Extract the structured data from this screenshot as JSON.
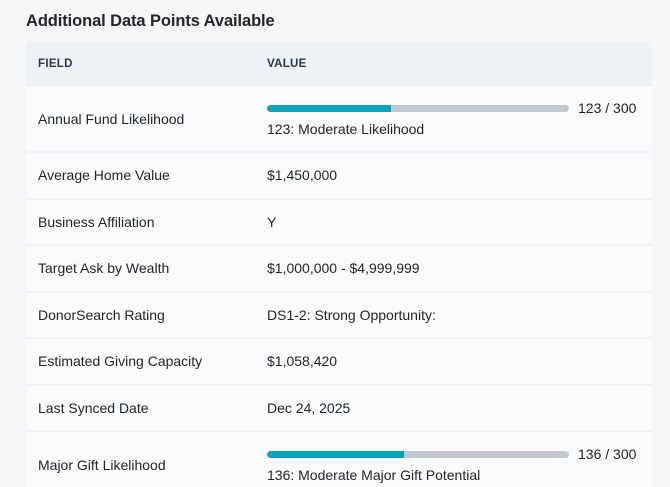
{
  "section": {
    "title": "Additional Data Points Available"
  },
  "table": {
    "columns": {
      "field": "FIELD",
      "value": "VALUE"
    },
    "rows": [
      {
        "field": "Annual Fund Likelihood",
        "type": "score",
        "score": 123,
        "max": 300,
        "score_label": "123 / 300",
        "description": "123: Moderate Likelihood"
      },
      {
        "field": "Average Home Value",
        "type": "text",
        "value": "$1,450,000"
      },
      {
        "field": "Business Affiliation",
        "type": "text",
        "value": "Y"
      },
      {
        "field": "Target Ask by Wealth",
        "type": "text",
        "value": "$1,000,000 - $4,999,999"
      },
      {
        "field": "DonorSearch Rating",
        "type": "text",
        "value": "DS1-2: Strong Opportunity:"
      },
      {
        "field": "Estimated Giving Capacity",
        "type": "text",
        "value": "$1,058,420"
      },
      {
        "field": "Last Synced Date",
        "type": "text",
        "value": "Dec 24, 2025"
      },
      {
        "field": "Major Gift Likelihood",
        "type": "score",
        "score": 136,
        "max": 300,
        "score_label": "136 / 300",
        "description": "136: Moderate Major Gift Potential"
      }
    ]
  },
  "colors": {
    "bar_fill": "#0aa3ba",
    "bar_track": "#c2c8d2",
    "header_bg": "#eef1f6",
    "header_text": "#2a3550"
  }
}
